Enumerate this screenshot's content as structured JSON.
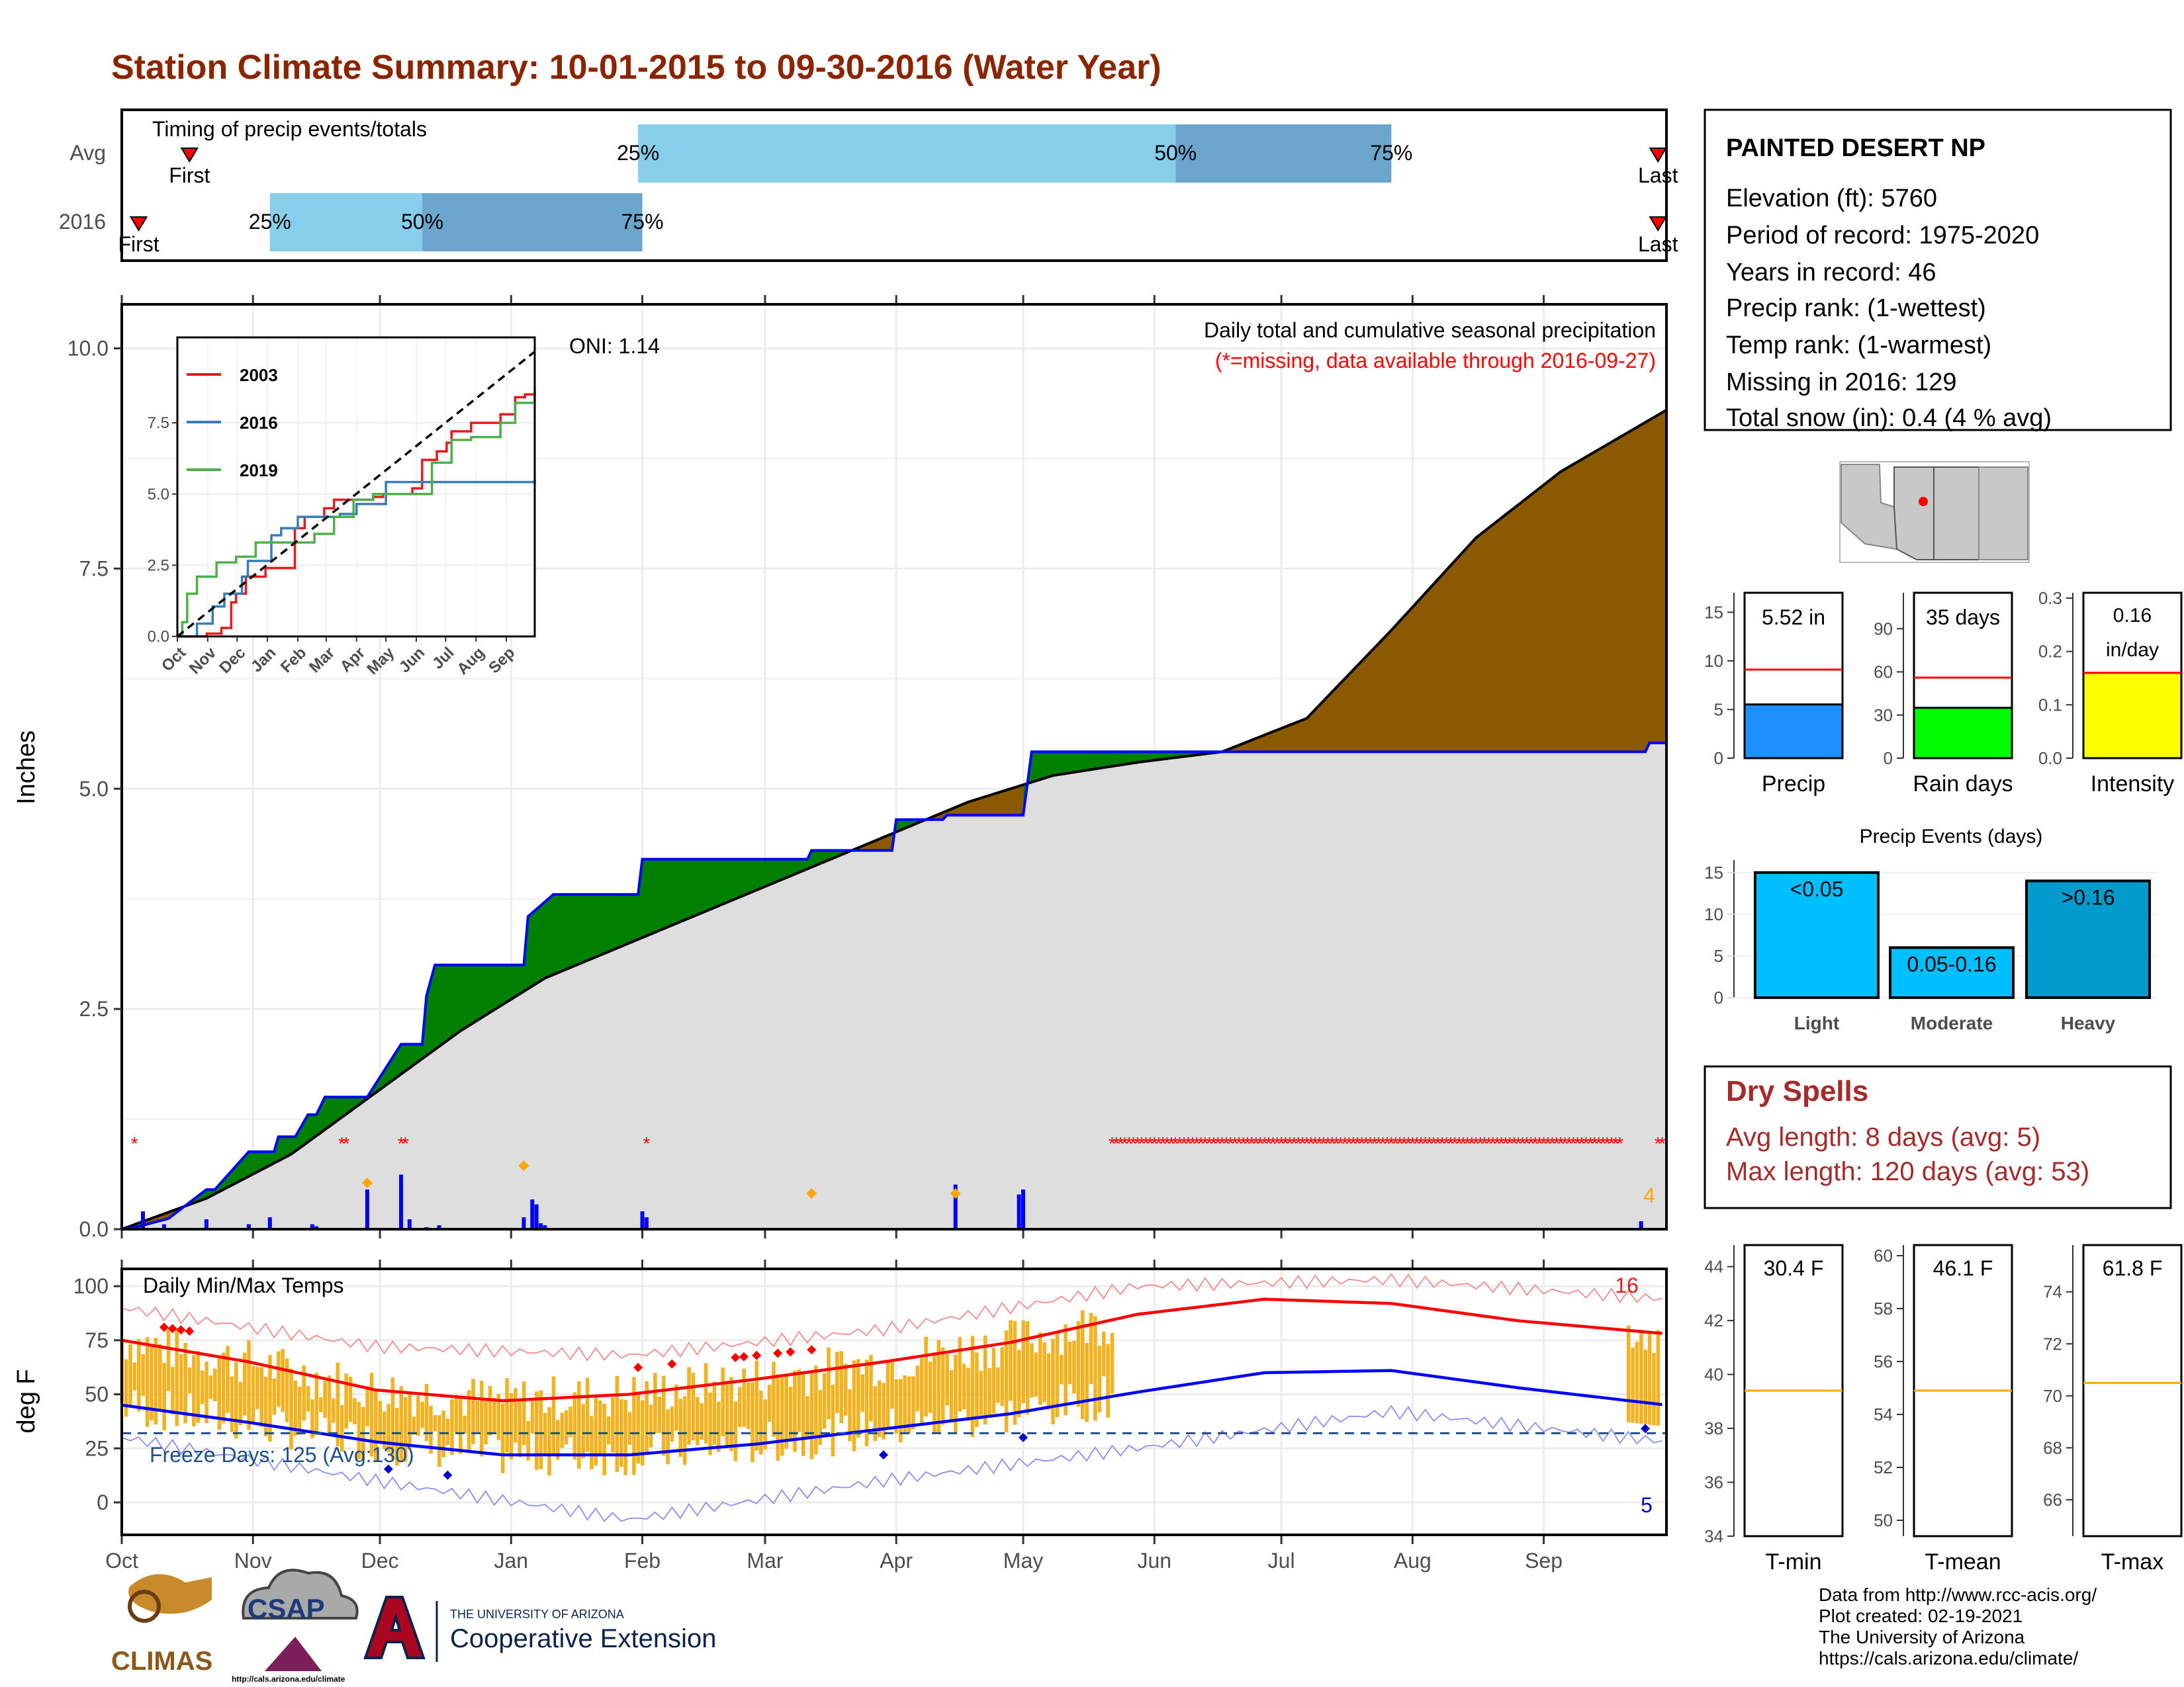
{
  "title": "Station Climate Summary: 10-01-2015 to 09-30-2016 (Water Year)",
  "months": [
    "Oct",
    "Nov",
    "Dec",
    "Jan",
    "Feb",
    "Mar",
    "Apr",
    "May",
    "Jun",
    "Jul",
    "Aug",
    "Sep"
  ],
  "timing": {
    "title": "Timing of precip events/totals",
    "row_labels": [
      "Avg",
      "2016"
    ],
    "first_label": "First",
    "last_label": "Last",
    "pct_labels": [
      "25%",
      "50%",
      "75%"
    ]
  },
  "precip_panel": {
    "y_label": "Inches",
    "y_ticks": [
      "0.0",
      "2.5",
      "5.0",
      "7.5",
      "10.0"
    ],
    "annotation_1": "Daily total and cumulative seasonal precipitation",
    "annotation_2": "(*=missing, data available through 2016-09-27)",
    "oni": "ONI: 1.14",
    "corner_count": "4"
  },
  "inset": {
    "y_ticks": [
      "0.0",
      "2.5",
      "5.0",
      "7.5"
    ],
    "legend": [
      "2003",
      "2016",
      "2019"
    ]
  },
  "temp_panel": {
    "y_label": "deg F",
    "y_ticks": [
      "0",
      "25",
      "50",
      "75",
      "100"
    ],
    "title": "Daily Min/Max Temps",
    "freeze_text": "Freeze Days: 125 (Avg:130)",
    "max_count": "16",
    "min_count": "5"
  },
  "station": {
    "name": "PAINTED DESERT NP",
    "lines": [
      "Elevation (ft): 5760",
      "Period of record: 1975-2020",
      "Years in record: 46",
      "Precip rank:  (1-wettest)",
      "Temp rank:  (1-warmest)",
      "Missing in 2016: 129",
      "Total snow (in): 0.4 (4 % avg)"
    ]
  },
  "mini_bars": [
    {
      "label": "Precip",
      "value_text": "5.52 in",
      "ticks": [
        "0",
        "5",
        "10",
        "15"
      ]
    },
    {
      "label": "Rain days",
      "value_text": "35 days",
      "ticks": [
        "0",
        "30",
        "60",
        "90"
      ]
    },
    {
      "label": "Intensity",
      "value_text": "0.16 in/day",
      "ticks": [
        "0.0",
        "0.1",
        "0.2",
        "0.3"
      ]
    }
  ],
  "precip_events": {
    "title": "Precip Events (days)",
    "ticks": [
      "0",
      "5",
      "10",
      "15"
    ],
    "categories": [
      "Light",
      "Moderate",
      "Heavy"
    ],
    "bar_labels": [
      "<0.05",
      "0.05-0.16",
      ">0.16"
    ]
  },
  "dry_spells": {
    "title": "Dry Spells",
    "avg": "Avg length: 8 days (avg: 5)",
    "max": "Max length: 120 days (avg: 53)"
  },
  "temp_bars": [
    {
      "label": "T-min",
      "value_text": "30.4 F",
      "ticks": [
        "34",
        "36",
        "38",
        "40",
        "42",
        "44"
      ]
    },
    {
      "label": "T-mean",
      "value_text": "46.1 F",
      "ticks": [
        "50",
        "52",
        "54",
        "56",
        "58",
        "60"
      ]
    },
    {
      "label": "T-max",
      "value_text": "61.8 F",
      "ticks": [
        "66",
        "68",
        "70",
        "72",
        "74"
      ]
    }
  ],
  "credits": [
    "Data from http://www.rcc-acis.org/",
    "Plot created: 02-19-2021",
    "The University of Arizona",
    "https://cals.arizona.edu/climate/"
  ],
  "logos": {
    "climas": "CLIMAS",
    "csap": "CSAP",
    "csap_url": "http://cals.arizona.edu/climate",
    "ua_small": "THE UNIVERSITY OF ARIZONA",
    "coop": "Cooperative Extension"
  },
  "chart_data": [
    {
      "type": "bar",
      "title": "Timing of precip events/totals",
      "x_unit": "day of water year",
      "rows": [
        {
          "name": "Avg",
          "first": 16,
          "p25": 122,
          "p50": 249,
          "p75": 300,
          "last": 363
        },
        {
          "name": "2016",
          "first": 4,
          "p25": 35,
          "p50": 71,
          "p75": 123,
          "last": 363
        }
      ]
    },
    {
      "type": "area",
      "title": "Daily total and cumulative seasonal precipitation",
      "ylabel": "Inches",
      "ylim": [
        0,
        10.5
      ],
      "x_unit": "day of water year",
      "series": [
        {
          "name": "2016 cumulative",
          "x": [
            0,
            4,
            7,
            11,
            20,
            22,
            30,
            36,
            37,
            41,
            44,
            46,
            48,
            58,
            66,
            71,
            72,
            74,
            95,
            96,
            102,
            106,
            122,
            123,
            162,
            163,
            166,
            168,
            182,
            183,
            194,
            195,
            213,
            215,
            360,
            361,
            365
          ],
          "values": [
            0,
            0.03,
            0.07,
            0.12,
            0.45,
            0.45,
            0.88,
            0.88,
            1.05,
            1.05,
            1.3,
            1.3,
            1.5,
            1.5,
            2.1,
            2.1,
            2.65,
            3.0,
            3.0,
            3.55,
            3.8,
            3.8,
            3.8,
            4.2,
            4.2,
            4.3,
            4.3,
            4.3,
            4.3,
            4.65,
            4.65,
            4.7,
            4.7,
            5.42,
            5.42,
            5.52,
            5.52
          ]
        },
        {
          "name": "Avg cumulative",
          "x": [
            0,
            20,
            40,
            60,
            80,
            100,
            120,
            140,
            160,
            180,
            200,
            220,
            240,
            260,
            280,
            300,
            320,
            340,
            365
          ],
          "values": [
            0,
            0.35,
            0.85,
            1.55,
            2.25,
            2.85,
            3.25,
            3.65,
            4.05,
            4.45,
            4.85,
            5.15,
            5.3,
            5.42,
            5.8,
            6.8,
            7.85,
            8.6,
            9.3
          ]
        }
      ],
      "daily_bars": {
        "x": [
          5,
          10,
          20,
          30,
          35,
          45,
          46,
          58,
          66,
          68,
          72,
          75,
          95,
          97,
          98,
          99,
          100,
          123,
          124,
          197,
          212,
          213,
          359
        ],
        "values": [
          0.18,
          0.05,
          0.1,
          0.05,
          0.12,
          0.05,
          0.03,
          0.4,
          0.55,
          0.1,
          0.02,
          0.04,
          0.12,
          0.3,
          0.25,
          0.06,
          0.04,
          0.18,
          0.12,
          0.45,
          0.35,
          0.4,
          0.08
        ]
      },
      "missing_days": [
        3,
        52,
        53,
        66,
        67,
        124,
        234,
        235,
        236,
        237,
        238,
        239,
        240,
        241,
        242,
        243,
        244,
        245,
        246,
        247,
        248,
        249,
        250,
        251,
        252,
        253,
        254,
        255,
        256,
        257,
        258,
        259,
        260,
        261,
        262,
        263,
        264,
        265,
        266,
        267,
        268,
        269,
        270,
        271,
        272,
        273,
        274,
        275,
        276,
        277,
        278,
        279,
        280,
        281,
        282,
        283,
        284,
        285,
        286,
        287,
        288,
        289,
        290,
        291,
        292,
        293,
        294,
        295,
        296,
        297,
        298,
        299,
        300,
        301,
        302,
        303,
        304,
        305,
        306,
        307,
        308,
        309,
        310,
        311,
        312,
        313,
        314,
        315,
        316,
        317,
        318,
        319,
        320,
        321,
        322,
        323,
        324,
        325,
        326,
        327,
        328,
        329,
        330,
        331,
        332,
        333,
        334,
        335,
        336,
        337,
        338,
        339,
        340,
        341,
        342,
        343,
        344,
        345,
        346,
        347,
        348,
        349,
        350,
        351,
        352,
        353,
        354,
        363,
        364
      ]
    },
    {
      "type": "line",
      "title": "",
      "ylim": [
        0,
        10.5
      ],
      "x_categories": [
        "Oct",
        "Nov",
        "Dec",
        "Jan",
        "Feb",
        "Mar",
        "Apr",
        "May",
        "Jun",
        "Jul",
        "Aug",
        "Sep"
      ],
      "series": [
        {
          "name": "2003",
          "x": [
            0,
            30,
            45,
            55,
            60,
            70,
            90,
            100,
            120,
            130,
            150,
            160,
            180,
            200,
            210,
            240,
            250,
            265,
            275,
            280,
            300,
            310,
            330,
            345,
            355,
            365
          ],
          "values": [
            0,
            0.1,
            0.3,
            1.2,
            1.5,
            2.1,
            2.4,
            2.4,
            3.8,
            4.2,
            4.5,
            4.8,
            4.8,
            4.9,
            5.0,
            5.2,
            6.2,
            6.5,
            6.8,
            7.2,
            7.5,
            7.5,
            7.8,
            8.4,
            8.5,
            8.6
          ]
        },
        {
          "name": "2016",
          "x": [
            0,
            20,
            36,
            48,
            66,
            72,
            96,
            106,
            123,
            166,
            183,
            213,
            215,
            365
          ],
          "values": [
            0,
            0.45,
            1.05,
            1.5,
            2.1,
            2.65,
            3.55,
            3.8,
            4.2,
            4.3,
            4.65,
            5.42,
            5.42,
            5.52
          ]
        },
        {
          "name": "2019",
          "x": [
            0,
            5,
            10,
            20,
            40,
            60,
            80,
            100,
            120,
            140,
            160,
            180,
            200,
            230,
            260,
            280,
            300,
            330,
            345,
            365
          ],
          "values": [
            0,
            0.5,
            1.5,
            2.1,
            2.6,
            2.8,
            3.3,
            3.3,
            3.3,
            3.6,
            4.2,
            4.8,
            5.0,
            5.0,
            6.1,
            6.9,
            7.0,
            7.5,
            8.2,
            8.8
          ]
        },
        {
          "name": "Avg",
          "x": [
            0,
            365
          ],
          "values": [
            0,
            10.0
          ]
        }
      ]
    },
    {
      "type": "line",
      "title": "Daily Min/Max Temps",
      "ylabel": "deg F",
      "ylim": [
        -15,
        108
      ],
      "x_unit": "day of water year",
      "series": [
        {
          "name": "Avg max",
          "x": [
            0,
            30,
            60,
            90,
            120,
            150,
            180,
            210,
            240,
            270,
            300,
            330,
            365
          ],
          "values": [
            75,
            65,
            52,
            47,
            50,
            57,
            65,
            74,
            87,
            94,
            92,
            84,
            78
          ]
        },
        {
          "name": "Avg min",
          "x": [
            0,
            30,
            60,
            90,
            120,
            150,
            180,
            210,
            240,
            270,
            300,
            330,
            365
          ],
          "values": [
            45,
            37,
            28,
            22,
            22,
            27,
            34,
            41,
            51,
            60,
            61,
            53,
            45
          ]
        },
        {
          "name": "Record max",
          "x": [
            0,
            60,
            120,
            180,
            240,
            300,
            365
          ],
          "values": [
            90,
            72,
            68,
            80,
            100,
            103,
            94
          ]
        },
        {
          "name": "Record min",
          "x": [
            0,
            60,
            120,
            180,
            240,
            300,
            365
          ],
          "values": [
            30,
            10,
            -8,
            10,
            25,
            42,
            28
          ]
        }
      ],
      "freeze_line": 32
    },
    {
      "type": "bar",
      "categories": [
        "Precip",
        "Rain days",
        "Intensity"
      ],
      "values": [
        5.52,
        35,
        0.16
      ],
      "averages": [
        9.1,
        56,
        0.16
      ]
    },
    {
      "type": "bar",
      "title": "Precip Events (days)",
      "categories": [
        "Light",
        "Moderate",
        "Heavy"
      ],
      "values": [
        15,
        6,
        14
      ]
    },
    {
      "type": "bar",
      "categories": [
        "T-min",
        "T-mean",
        "T-max"
      ],
      "values": [
        30.4,
        46.1,
        61.8
      ],
      "averages": [
        39.4,
        54.9,
        70.5
      ]
    }
  ]
}
